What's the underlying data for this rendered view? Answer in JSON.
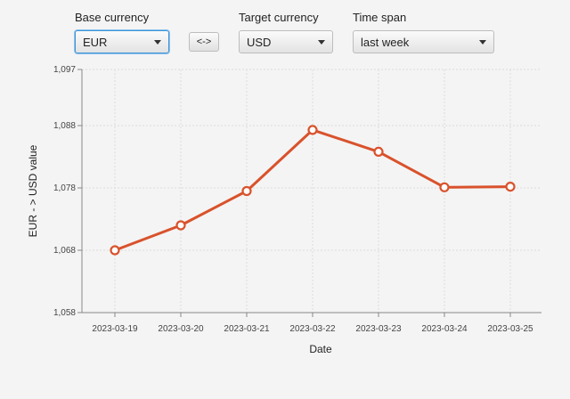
{
  "controls": {
    "base_currency": {
      "label": "Base currency",
      "value": "EUR"
    },
    "swap_button": {
      "label": "<->"
    },
    "target_currency": {
      "label": "Target currency",
      "value": "USD"
    },
    "time_span": {
      "label": "Time span",
      "value": "last week"
    }
  },
  "colors": {
    "series": "#d9522c",
    "grid": "#dcdcdc",
    "focus": "#3c93d6"
  },
  "chart_data": {
    "type": "line",
    "xlabel": "Date",
    "ylabel": "EUR - > USD value",
    "ylim": [
      1.058,
      1.097
    ],
    "yticks": [
      1.058,
      1.068,
      1.078,
      1.088,
      1.097
    ],
    "ytick_labels": [
      "1,058",
      "1,068",
      "1,078",
      "1,088",
      "1,097"
    ],
    "grid": true,
    "categories": [
      "2023-03-19",
      "2023-03-20",
      "2023-03-21",
      "2023-03-22",
      "2023-03-23",
      "2023-03-24",
      "2023-03-25"
    ],
    "series": [
      {
        "values": [
          1.068,
          1.072,
          1.0775,
          1.0873,
          1.0838,
          1.0781,
          1.0782
        ]
      }
    ]
  }
}
